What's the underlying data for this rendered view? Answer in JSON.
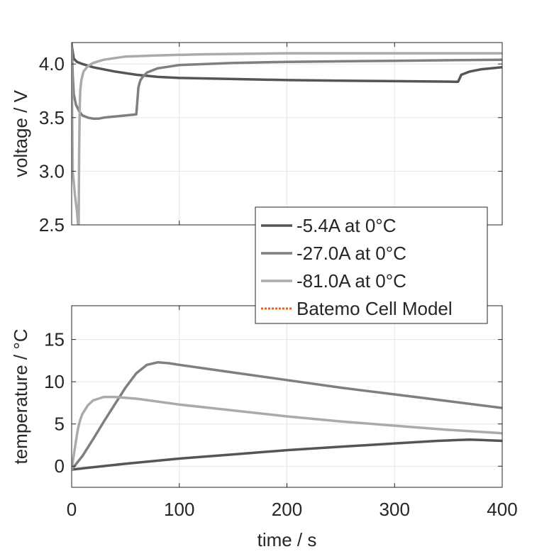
{
  "chart_data": [
    {
      "type": "line",
      "ylabel": "voltage / V",
      "xlabel": "",
      "xlim": [
        0,
        400
      ],
      "ylim": [
        2.5,
        4.2
      ],
      "xticks": [
        "0",
        "100",
        "200",
        "300",
        "400"
      ],
      "xticks_shown": false,
      "yticks": [
        "2.5",
        "3.0",
        "3.5",
        "4.0"
      ],
      "ytick_values": [
        2.5,
        3.0,
        3.5,
        4.0
      ],
      "grid": true,
      "series": [
        {
          "name": "-5.4A at 0°C",
          "color": "#555555",
          "x": [
            0,
            2,
            5,
            10,
            20,
            40,
            60,
            80,
            100,
            150,
            200,
            250,
            300,
            355,
            359,
            362,
            370,
            380,
            400
          ],
          "y": [
            4.18,
            4.05,
            4.02,
            4.0,
            3.97,
            3.93,
            3.9,
            3.88,
            3.87,
            3.86,
            3.85,
            3.845,
            3.84,
            3.835,
            3.835,
            3.9,
            3.93,
            3.95,
            3.97
          ]
        },
        {
          "name": "-27.0A at 0°C",
          "color": "#7f7f7f",
          "x": [
            0,
            1,
            2,
            4,
            7,
            10,
            15,
            20,
            25,
            30,
            40,
            50,
            60,
            61,
            62,
            63,
            64,
            66,
            70,
            80,
            100,
            150,
            200,
            300,
            400
          ],
          "y": [
            4.2,
            3.9,
            3.72,
            3.62,
            3.56,
            3.52,
            3.5,
            3.49,
            3.49,
            3.5,
            3.51,
            3.52,
            3.53,
            3.65,
            3.78,
            3.82,
            3.85,
            3.88,
            3.92,
            3.96,
            3.99,
            4.01,
            4.02,
            4.03,
            4.04
          ]
        },
        {
          "name": "-81.0A at 0°C",
          "color": "#aaaaaa",
          "x": [
            0,
            0.5,
            1,
            3,
            5,
            6,
            6.5,
            7,
            7.5,
            8,
            9,
            11,
            15,
            20,
            30,
            50,
            80,
            120,
            200,
            300,
            400
          ],
          "y": [
            4.15,
            3.5,
            3.0,
            2.78,
            2.62,
            2.5,
            2.5,
            3.2,
            3.6,
            3.75,
            3.85,
            3.93,
            3.98,
            4.01,
            4.04,
            4.07,
            4.08,
            4.09,
            4.1,
            4.1,
            4.1
          ]
        },
        {
          "name": "Batemo Cell Model",
          "color": "#e2661b",
          "style": "dotted",
          "x": [],
          "y": []
        }
      ]
    },
    {
      "type": "line",
      "ylabel": "temperature / °C",
      "xlabel": "time / s",
      "xlim": [
        0,
        400
      ],
      "ylim": [
        -2.5,
        19
      ],
      "xticks": [
        "0",
        "100",
        "200",
        "300",
        "400"
      ],
      "xtick_values": [
        0,
        100,
        200,
        300,
        400
      ],
      "yticks": [
        "0",
        "5",
        "10",
        "15"
      ],
      "ytick_values": [
        0,
        5,
        10,
        15
      ],
      "grid": true,
      "series": [
        {
          "name": "-5.4A at 0°C",
          "color": "#555555",
          "x": [
            0,
            50,
            100,
            150,
            200,
            250,
            300,
            340,
            360,
            370,
            380,
            400
          ],
          "y": [
            -0.4,
            0.3,
            0.9,
            1.4,
            1.9,
            2.3,
            2.7,
            3.0,
            3.1,
            3.15,
            3.1,
            3.0
          ]
        },
        {
          "name": "-27.0A at 0°C",
          "color": "#7f7f7f",
          "x": [
            0,
            10,
            20,
            30,
            40,
            50,
            60,
            70,
            80,
            90,
            100,
            150,
            200,
            250,
            300,
            350,
            400
          ],
          "y": [
            -0.4,
            1.2,
            3.2,
            5.3,
            7.3,
            9.3,
            11.0,
            12.0,
            12.3,
            12.2,
            12.0,
            11.1,
            10.2,
            9.3,
            8.5,
            7.7,
            6.9
          ]
        },
        {
          "name": "-81.0A at 0°C",
          "color": "#aaaaaa",
          "x": [
            0,
            2,
            4,
            6,
            8,
            10,
            15,
            20,
            25,
            30,
            40,
            60,
            100,
            150,
            200,
            250,
            300,
            350,
            400
          ],
          "y": [
            -0.4,
            1.3,
            3.0,
            4.5,
            5.5,
            6.2,
            7.2,
            7.8,
            8.0,
            8.2,
            8.2,
            8.0,
            7.3,
            6.6,
            5.9,
            5.3,
            4.8,
            4.3,
            3.9
          ]
        },
        {
          "name": "Batemo Cell Model",
          "color": "#e2661b",
          "style": "dotted",
          "x": [],
          "y": []
        }
      ]
    }
  ],
  "legend": {
    "entries": [
      {
        "label": "-5.4A at 0°C",
        "color": "#555555",
        "style": "solid"
      },
      {
        "label": "-27.0A at 0°C",
        "color": "#7f7f7f",
        "style": "solid"
      },
      {
        "label": "-81.0A at 0°C",
        "color": "#aaaaaa",
        "style": "solid"
      },
      {
        "label": "Batemo Cell Model",
        "color": "#e2661b",
        "style": "dotted"
      }
    ],
    "placement": "center-right between panels"
  }
}
